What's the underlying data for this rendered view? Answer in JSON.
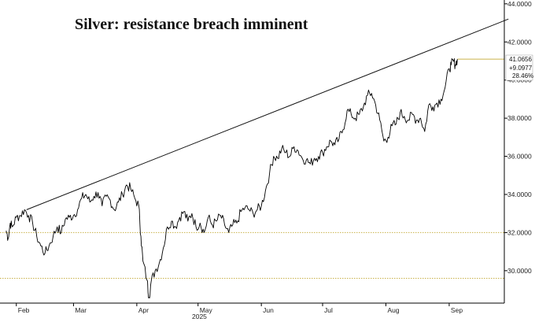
{
  "chart_data": {
    "type": "line",
    "title": "Silver: resistance breach imminent",
    "year_label": "2025",
    "x_tick_labels": [
      "Feb",
      "Mar",
      "Apr",
      "May",
      "Jun",
      "Jul",
      "Aug",
      "Sep"
    ],
    "y_tick_labels": [
      "30.0000",
      "32.0000",
      "34.0000",
      "36.0000",
      "38.0000",
      "40.0000",
      "42.0000",
      "44.0000"
    ],
    "ylim": [
      28.3,
      44.2
    ],
    "grid": false,
    "last_value_tag": {
      "price": "41.0656",
      "change": "+9.0977",
      "pct": "28.46%"
    },
    "reference_levels": [
      32.0,
      29.6
    ],
    "resistance_line": {
      "from": [
        "2025-02-06",
        33.2
      ],
      "to": [
        "2025-09-30",
        43.2
      ]
    },
    "series": [
      {
        "values": [
          [
            "2025-01-27",
            32.1
          ],
          [
            "2025-01-28",
            31.7
          ],
          [
            "2025-01-29",
            32.5
          ],
          [
            "2025-01-30",
            32.3
          ],
          [
            "2025-02-01",
            32.8
          ],
          [
            "2025-02-03",
            32.9
          ],
          [
            "2025-02-05",
            33.2
          ],
          [
            "2025-02-07",
            32.9
          ],
          [
            "2025-02-09",
            32.5
          ],
          [
            "2025-02-11",
            31.8
          ],
          [
            "2025-02-13",
            31.3
          ],
          [
            "2025-02-15",
            30.9
          ],
          [
            "2025-02-17",
            31.3
          ],
          [
            "2025-02-19",
            31.8
          ],
          [
            "2025-02-21",
            32.3
          ],
          [
            "2025-02-23",
            32.0
          ],
          [
            "2025-02-25",
            32.7
          ],
          [
            "2025-02-27",
            32.8
          ],
          [
            "2025-03-01",
            32.9
          ],
          [
            "2025-03-03",
            33.2
          ],
          [
            "2025-03-05",
            33.8
          ],
          [
            "2025-03-07",
            34.0
          ],
          [
            "2025-03-09",
            33.6
          ],
          [
            "2025-03-11",
            33.9
          ],
          [
            "2025-03-13",
            34.1
          ],
          [
            "2025-03-15",
            33.4
          ],
          [
            "2025-03-17",
            33.9
          ],
          [
            "2025-03-19",
            33.7
          ],
          [
            "2025-03-21",
            33.2
          ],
          [
            "2025-03-23",
            33.6
          ],
          [
            "2025-03-25",
            34.0
          ],
          [
            "2025-03-27",
            34.5
          ],
          [
            "2025-03-29",
            34.3
          ],
          [
            "2025-03-31",
            33.8
          ],
          [
            "2025-04-02",
            33.4
          ],
          [
            "2025-04-03",
            31.8
          ],
          [
            "2025-04-04",
            30.5
          ],
          [
            "2025-04-06",
            29.5
          ],
          [
            "2025-04-07",
            28.6
          ],
          [
            "2025-04-08",
            29.4
          ],
          [
            "2025-04-10",
            30.0
          ],
          [
            "2025-04-12",
            30.4
          ],
          [
            "2025-04-14",
            31.2
          ],
          [
            "2025-04-16",
            32.3
          ],
          [
            "2025-04-18",
            32.6
          ],
          [
            "2025-04-20",
            32.3
          ],
          [
            "2025-04-22",
            32.8
          ],
          [
            "2025-04-24",
            33.1
          ],
          [
            "2025-04-26",
            32.6
          ],
          [
            "2025-04-28",
            33.0
          ],
          [
            "2025-04-30",
            32.3
          ],
          [
            "2025-05-02",
            32.5
          ],
          [
            "2025-05-04",
            32.0
          ],
          [
            "2025-05-06",
            32.8
          ],
          [
            "2025-05-08",
            32.4
          ],
          [
            "2025-05-10",
            32.6
          ],
          [
            "2025-05-12",
            32.9
          ],
          [
            "2025-05-14",
            32.4
          ],
          [
            "2025-05-16",
            32.0
          ],
          [
            "2025-05-18",
            32.4
          ],
          [
            "2025-05-20",
            32.5
          ],
          [
            "2025-05-22",
            33.1
          ],
          [
            "2025-05-24",
            33.3
          ],
          [
            "2025-05-26",
            33.2
          ],
          [
            "2025-05-28",
            33.0
          ],
          [
            "2025-05-30",
            33.2
          ],
          [
            "2025-06-01",
            33.4
          ],
          [
            "2025-06-03",
            34.2
          ],
          [
            "2025-06-05",
            35.1
          ],
          [
            "2025-06-07",
            36.0
          ],
          [
            "2025-06-09",
            35.9
          ],
          [
            "2025-06-11",
            36.4
          ],
          [
            "2025-06-13",
            36.2
          ],
          [
            "2025-06-15",
            36.0
          ],
          [
            "2025-06-17",
            36.5
          ],
          [
            "2025-06-19",
            36.3
          ],
          [
            "2025-06-21",
            35.9
          ],
          [
            "2025-06-23",
            35.8
          ],
          [
            "2025-06-25",
            35.6
          ],
          [
            "2025-06-27",
            35.9
          ],
          [
            "2025-06-29",
            36.0
          ],
          [
            "2025-07-01",
            36.2
          ],
          [
            "2025-07-03",
            36.5
          ],
          [
            "2025-07-05",
            36.8
          ],
          [
            "2025-07-07",
            36.6
          ],
          [
            "2025-07-09",
            36.9
          ],
          [
            "2025-07-11",
            37.4
          ],
          [
            "2025-07-13",
            38.4
          ],
          [
            "2025-07-15",
            38.2
          ],
          [
            "2025-07-17",
            38.0
          ],
          [
            "2025-07-19",
            38.2
          ],
          [
            "2025-07-21",
            38.6
          ],
          [
            "2025-07-23",
            39.2
          ],
          [
            "2025-07-25",
            39.3
          ],
          [
            "2025-07-27",
            38.7
          ],
          [
            "2025-07-29",
            37.9
          ],
          [
            "2025-07-31",
            36.8
          ],
          [
            "2025-08-02",
            37.0
          ],
          [
            "2025-08-04",
            37.6
          ],
          [
            "2025-08-06",
            37.7
          ],
          [
            "2025-08-08",
            38.3
          ],
          [
            "2025-08-10",
            38.1
          ],
          [
            "2025-08-12",
            37.9
          ],
          [
            "2025-08-14",
            38.2
          ],
          [
            "2025-08-16",
            37.9
          ],
          [
            "2025-08-18",
            38.0
          ],
          [
            "2025-08-20",
            37.3
          ],
          [
            "2025-08-22",
            38.7
          ],
          [
            "2025-08-24",
            38.6
          ],
          [
            "2025-08-26",
            38.8
          ],
          [
            "2025-08-28",
            39.0
          ],
          [
            "2025-08-30",
            39.6
          ],
          [
            "2025-09-01",
            40.6
          ],
          [
            "2025-09-02",
            40.8
          ],
          [
            "2025-09-03",
            41.0
          ],
          [
            "2025-09-04",
            40.8
          ],
          [
            "2025-09-05",
            41.1
          ]
        ]
      }
    ]
  },
  "colors": {
    "price_line": "#000000",
    "trend_line": "#111111",
    "reference_line": "#c9b24a",
    "axis": "#000000"
  }
}
